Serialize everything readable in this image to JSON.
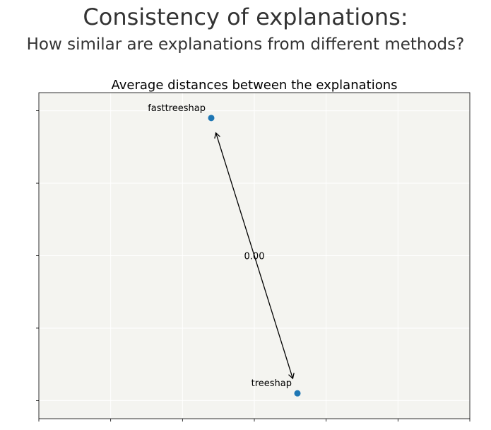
{
  "figure": {
    "title": "Consistency of explanations:",
    "subtitle": "How similar are explanations from different methods?"
  },
  "chart_data": {
    "type": "scatter",
    "title": "Average distances between the explanations",
    "xlabel": "",
    "ylabel": "",
    "xlim": [
      0,
      6
    ],
    "ylim": [
      -0.25,
      4.25
    ],
    "x_ticks": [
      0,
      1,
      2,
      3,
      4,
      5,
      6
    ],
    "y_ticks": [
      0,
      1,
      2,
      3,
      4
    ],
    "tick_labels_shown": false,
    "grid": true,
    "background": "#f4f4f0",
    "grid_color": "#ffffff",
    "point_color": "#1f77b4",
    "points": [
      {
        "name": "fasttreeshap",
        "x": 2.4,
        "y": 3.9
      },
      {
        "name": "treeshap",
        "x": 3.6,
        "y": 0.1
      }
    ],
    "distances": [
      {
        "from": "fasttreeshap",
        "to": "treeshap",
        "value": "0.00"
      }
    ]
  }
}
